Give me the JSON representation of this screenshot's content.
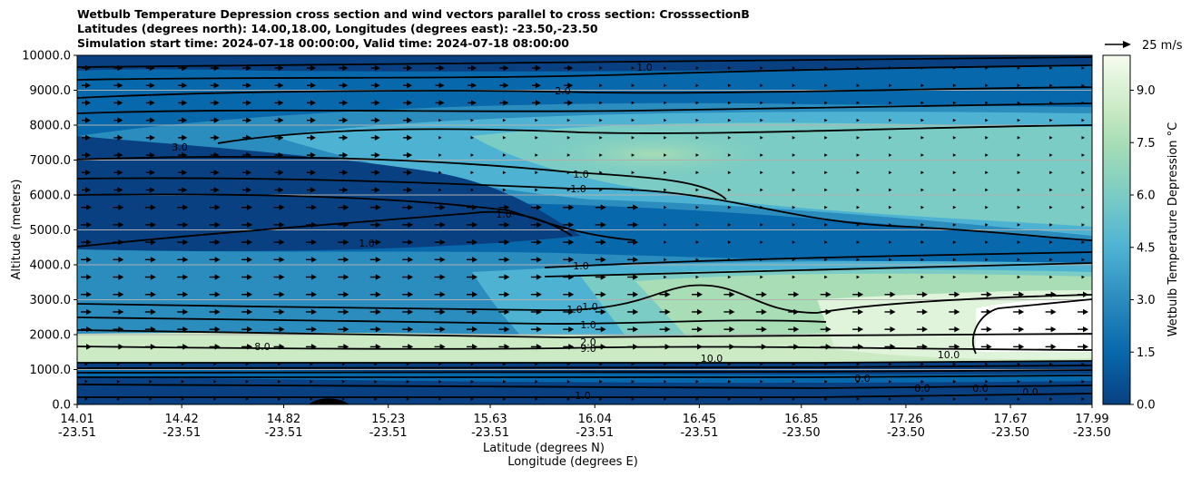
{
  "title": {
    "line1": "Wetbulb Temperature Depression cross section and wind vectors parallel to cross section: CrosssectionB",
    "line2": "Latitudes (degrees north): 14.00,18.00, Longitudes (degrees east): -23.50,-23.50",
    "line3": "Simulation start time: 2024-07-18 00:00:00, Valid time: 2024-07-18 08:00:00"
  },
  "chart_data": {
    "type": "contour",
    "title": "Wetbulb Temperature Depression cross section and wind vectors parallel to cross section: CrosssectionB",
    "ylabel": "Altitude (meters)",
    "xlabel_lat": "Latitude (degrees N)",
    "xlabel_lon": "Longitude (degrees E)",
    "ylim": [
      0,
      10000
    ],
    "xlim": [
      14.01,
      17.99
    ],
    "y_ticks": [
      "0.0",
      "1000.0",
      "2000.0",
      "3000.0",
      "4000.0",
      "5000.0",
      "6000.0",
      "7000.0",
      "8000.0",
      "9000.0",
      "10000.0"
    ],
    "y_values": [
      0,
      1000,
      2000,
      3000,
      4000,
      5000,
      6000,
      7000,
      8000,
      9000,
      10000
    ],
    "x_ticks_lat": [
      "14.01",
      "14.42",
      "14.82",
      "15.23",
      "15.63",
      "16.04",
      "16.45",
      "16.85",
      "17.26",
      "17.67",
      "17.99"
    ],
    "x_ticks_lon": [
      "-23.51",
      "-23.51",
      "-23.51",
      "-23.51",
      "-23.51",
      "-23.51",
      "-23.51",
      "-23.50",
      "-23.50",
      "-23.50",
      "-23.50"
    ],
    "x_tick_values": [
      14.01,
      14.42,
      14.82,
      15.23,
      15.63,
      16.04,
      16.45,
      16.85,
      17.26,
      17.67,
      17.99
    ],
    "colorbar": {
      "label": "Wetbulb Temperature Depression °C",
      "range": [
        0,
        10
      ],
      "ticks": [
        "0.0",
        "1.5",
        "3.0",
        "4.5",
        "6.0",
        "7.5",
        "9.0"
      ],
      "tick_values": [
        0,
        1.5,
        3.0,
        4.5,
        6.0,
        7.5,
        9.0
      ],
      "colors": [
        "#084081",
        "#0868ac",
        "#2b8cbe",
        "#4eb3d3",
        "#7bccc4",
        "#a8ddb5",
        "#ccebc5",
        "#e0f3db",
        "#f7fcf0"
      ]
    },
    "contour_labels": [
      "1.0",
      "2.0",
      "3.0",
      "4.0",
      "5.0",
      "6.0",
      "8.0",
      "9.0",
      "10.0",
      "0.0"
    ],
    "wind_legend": "25 m/s",
    "gridlines": "horizontal"
  }
}
